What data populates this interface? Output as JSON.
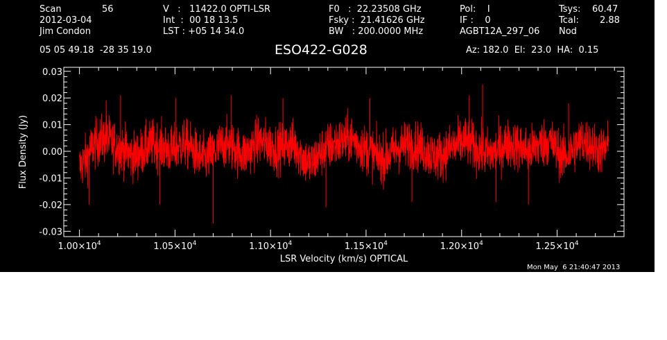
{
  "header": {
    "col1": {
      "scan_label": "Scan",
      "scan_value": "56",
      "date": "2012-03-04",
      "observer": "Jim Condon"
    },
    "col2": {
      "v_line": "V   :   11422.0 OPTI-LSR",
      "int_line": "Int  :  00 18 13.5",
      "lst_line": "LST : +05 14 34.0"
    },
    "col3": {
      "f0_line": "F0   :  22.23508 GHz",
      "fsky_line": "Fsky :  21.41626 GHz",
      "bw_line": "BW   : 200.0000 MHz"
    },
    "col4": {
      "pol_line": "Pol:    I",
      "if_line": "IF :    0",
      "project": "AGBT12A_297_06"
    },
    "col5": {
      "tsys_label": "Tsys:",
      "tsys_value": "60.47",
      "tcal_label": "Tcal:",
      "tcal_value": "2.88",
      "procedure": "Nod"
    },
    "coords": "05 05 49.18  -28 35 19.0",
    "source": "ESO422-G028",
    "pointing": "Az: 182.0  El:  23.0  HA:  0.15",
    "timestamp": "Mon May  6 21:40:47 2013"
  },
  "chart_data": {
    "type": "line",
    "xlabel": "LSR Velocity (km/s) OPTICAL",
    "ylabel": "Flux Density (Jy)",
    "xlim": [
      9918,
      12850
    ],
    "ylim": [
      -0.032,
      0.0315
    ],
    "x_ticks": [
      {
        "value": 10000,
        "mantissa": "1.00×10",
        "exp": "4"
      },
      {
        "value": 10500,
        "mantissa": "1.05×10",
        "exp": "4"
      },
      {
        "value": 11000,
        "mantissa": "1.10×10",
        "exp": "4"
      },
      {
        "value": 11500,
        "mantissa": "1.15×10",
        "exp": "4"
      },
      {
        "value": 12000,
        "mantissa": "1.20×10",
        "exp": "4"
      },
      {
        "value": 12500,
        "mantissa": "1.25×10",
        "exp": "4"
      }
    ],
    "y_ticks": [
      {
        "value": 0.03,
        "label": "0.03"
      },
      {
        "value": 0.02,
        "label": "0.02"
      },
      {
        "value": 0.01,
        "label": "0.01"
      },
      {
        "value": 0.0,
        "label": "0.00"
      },
      {
        "value": -0.01,
        "label": "-0.01"
      },
      {
        "value": -0.02,
        "label": "-0.02"
      },
      {
        "value": -0.03,
        "label": "-0.03"
      }
    ],
    "series": [
      {
        "color": "#ff0000",
        "x_start": 10000,
        "x_end": 12770,
        "values": [
          -0.006,
          -0.003,
          0.002,
          0.004,
          0.005,
          0.003,
          0.001,
          0.0,
          -0.002,
          -0.001,
          0.001,
          0.003,
          0.002,
          0.001,
          0.0,
          0.002,
          0.003,
          0.001,
          -0.002,
          -0.003,
          -0.001,
          0.001,
          0.003,
          0.002,
          0.0,
          -0.001,
          0.001,
          0.004,
          0.003,
          0.002,
          0.001,
          0.002,
          0.003,
          0.001,
          -0.003,
          -0.005,
          -0.002,
          0.001,
          0.002,
          0.003,
          0.004,
          0.005,
          0.003,
          0.001,
          0.0,
          -0.002,
          -0.003,
          -0.001,
          0.001,
          0.002,
          0.003,
          0.002,
          0.001,
          -0.001,
          -0.002,
          -0.001,
          0.001,
          0.002,
          0.004,
          0.003,
          0.001,
          0.0,
          -0.001,
          0.0,
          0.002,
          0.003,
          0.002,
          0.001,
          0.0,
          0.002,
          0.003,
          0.004,
          0.001,
          -0.002,
          -0.001,
          0.002,
          0.004,
          0.003,
          0.001,
          0.0,
          0.002
        ],
        "noise_rms": 0.0045,
        "spikes": [
          {
            "x": 10050,
            "y": -0.02
          },
          {
            "x": 10140,
            "y": 0.019
          },
          {
            "x": 10215,
            "y": 0.021
          },
          {
            "x": 10420,
            "y": -0.02
          },
          {
            "x": 10505,
            "y": 0.02
          },
          {
            "x": 10700,
            "y": -0.027
          },
          {
            "x": 10795,
            "y": 0.021
          },
          {
            "x": 11065,
            "y": 0.02
          },
          {
            "x": 11290,
            "y": -0.021
          },
          {
            "x": 11520,
            "y": 0.02
          },
          {
            "x": 11740,
            "y": -0.019
          },
          {
            "x": 12040,
            "y": 0.021
          },
          {
            "x": 12110,
            "y": 0.025
          },
          {
            "x": 12180,
            "y": -0.019
          },
          {
            "x": 12350,
            "y": -0.02
          },
          {
            "x": 12560,
            "y": 0.018
          }
        ]
      }
    ]
  }
}
